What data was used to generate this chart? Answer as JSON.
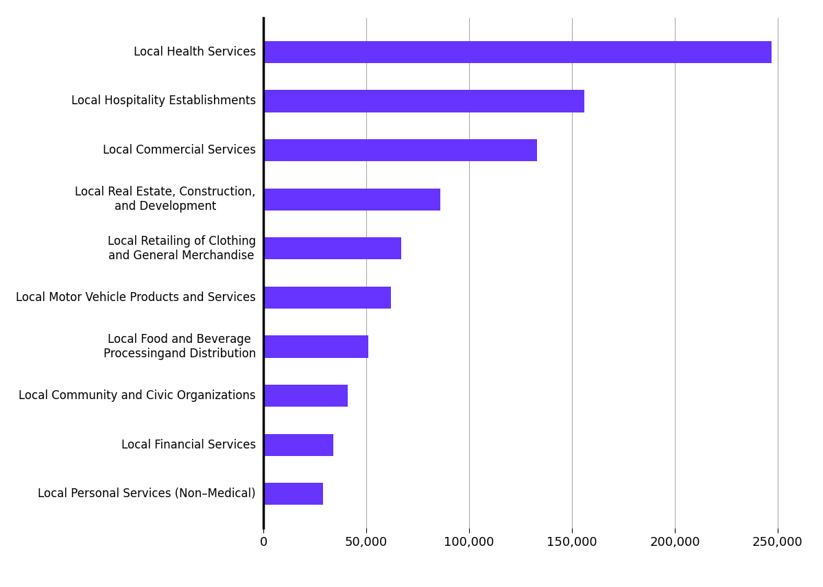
{
  "categories": [
    "Local Personal Services (Non–Medical)",
    "Local Financial Services",
    "Local Community and Civic Organizations",
    "Local Food and Beverage\nProcessingand Distribution",
    "Local Motor Vehicle Products and Services",
    "Local Retailing of Clothing\nand General Merchandise",
    "Local Real Estate, Construction,\nand Development",
    "Local Commercial Services",
    "Local Hospitality Establishments",
    "Local Health Services"
  ],
  "values": [
    29000,
    34000,
    41000,
    51000,
    62000,
    67000,
    86000,
    133000,
    156000,
    247000
  ],
  "bar_color": "#6633ff",
  "xlim": [
    0,
    260000
  ],
  "xticks": [
    0,
    50000,
    100000,
    150000,
    200000,
    250000
  ],
  "bar_height": 0.45,
  "background_color": "#ffffff",
  "grid_color": "#aaaaaa",
  "spine_color": "#000000",
  "tick_label_fontsize": 12,
  "x_tick_label_fontsize": 13
}
